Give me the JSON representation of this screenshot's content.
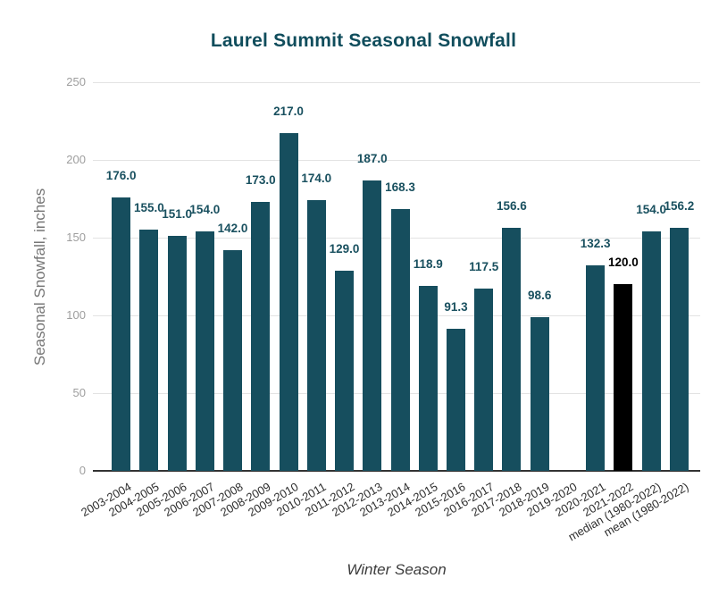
{
  "chart_data": {
    "type": "bar",
    "title": "Laurel Summit Seasonal Snowfall",
    "xlabel": "Winter Season",
    "ylabel": "Seasonal Snowfall, inches",
    "ylim": [
      0,
      250
    ],
    "yticks": [
      0,
      50,
      100,
      150,
      200,
      250
    ],
    "grid": true,
    "legend": false,
    "value_label_decimals": 1,
    "categories": [
      "2003-2004",
      "2004-2005",
      "2005-2006",
      "2006-2007",
      "2007-2008",
      "2008-2009",
      "2009-2010",
      "2010-2011",
      "2011-2012",
      "2012-2013",
      "2013-2014",
      "2014-2015",
      "2015-2016",
      "2016-2017",
      "2017-2018",
      "2018-2019",
      "2019-2020",
      "2020-2021",
      "2021-2022",
      "median (1980-2022)",
      "mean (1980-2022)"
    ],
    "values": [
      176.0,
      155.0,
      151.0,
      154.0,
      142.0,
      173.0,
      217.0,
      174.0,
      129.0,
      187.0,
      168.3,
      118.9,
      91.3,
      117.5,
      156.6,
      98.6,
      null,
      132.3,
      120.0,
      154.0,
      156.2
    ],
    "highlight_index": 18,
    "colors": {
      "bar": "#164e5e",
      "highlight_bar": "#000000",
      "value_label": "#19505f",
      "highlight_value_label": "#000000",
      "title": "#104d5c",
      "y_tick": "#9e9e9e",
      "y_axis_title": "#757575",
      "x_tick": "#2e2e2e",
      "x_axis_title": "#3c3c3c",
      "gridline": "#e3e3e3",
      "baseline": "#333333",
      "background": "#ffffff"
    }
  }
}
